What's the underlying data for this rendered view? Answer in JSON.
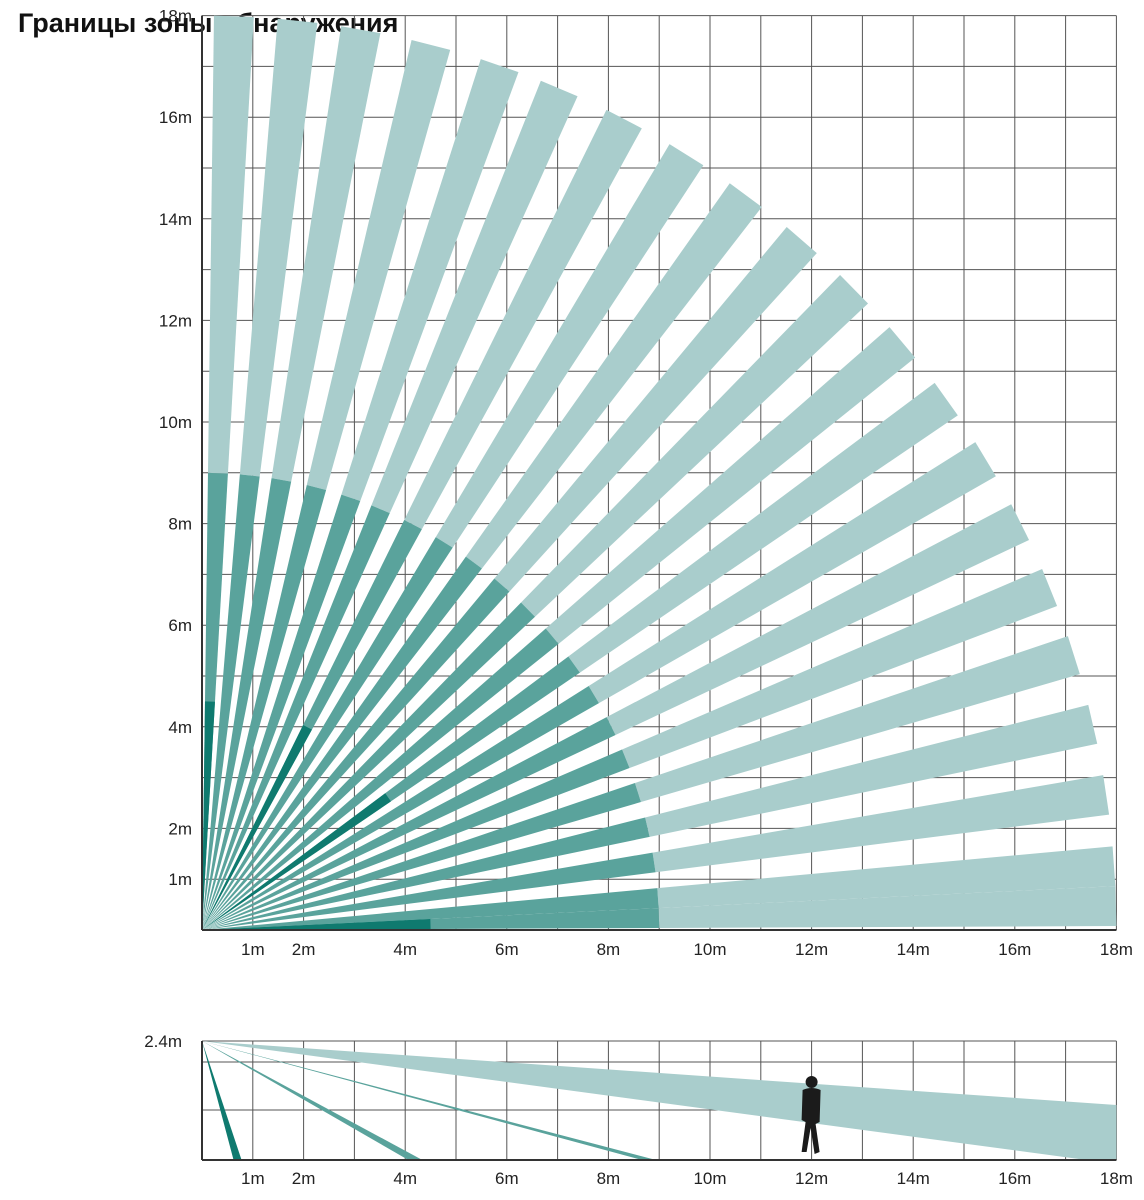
{
  "title": "Границы зоны обнаружения",
  "colors": {
    "near": "#0f7a6f",
    "mid": "#5aa39c",
    "far": "#a9cdcc",
    "grid": "#555555"
  },
  "top_view": {
    "x_ticks": [
      {
        "value": 1,
        "label": "1m"
      },
      {
        "value": 2,
        "label": "2m"
      },
      {
        "value": 4,
        "label": "4m"
      },
      {
        "value": 6,
        "label": "6m"
      },
      {
        "value": 8,
        "label": "8m"
      },
      {
        "value": 10,
        "label": "10m"
      },
      {
        "value": 12,
        "label": "12m"
      },
      {
        "value": 14,
        "label": "14m"
      },
      {
        "value": 16,
        "label": "16m"
      },
      {
        "value": 18,
        "label": "18m"
      }
    ],
    "y_ticks": [
      {
        "value": 1,
        "label": "1m"
      },
      {
        "value": 2,
        "label": "2m"
      },
      {
        "value": 4,
        "label": "4m"
      },
      {
        "value": 6,
        "label": "6m"
      },
      {
        "value": 8,
        "label": "8m"
      },
      {
        "value": 10,
        "label": "10m"
      },
      {
        "value": 12,
        "label": "12m"
      },
      {
        "value": 14,
        "label": "14m"
      },
      {
        "value": 16,
        "label": "16m"
      },
      {
        "value": 18,
        "label": "18m"
      }
    ],
    "beams": [
      {
        "angle_deg": 88,
        "near_m": 4.5,
        "mid_m": 9,
        "far_m": 18
      },
      {
        "angle_deg": 84,
        "near_m": 0,
        "mid_m": 9,
        "far_m": 18
      },
      {
        "angle_deg": 80,
        "near_m": 0,
        "mid_m": 9,
        "far_m": 18
      },
      {
        "angle_deg": 75.5,
        "near_m": 0,
        "mid_m": 9,
        "far_m": 18
      },
      {
        "angle_deg": 71,
        "near_m": 0,
        "mid_m": 9,
        "far_m": 18
      },
      {
        "angle_deg": 67,
        "near_m": 0,
        "mid_m": 9,
        "far_m": 18
      },
      {
        "angle_deg": 62.5,
        "near_m": 4.5,
        "mid_m": 9,
        "far_m": 18
      },
      {
        "angle_deg": 58,
        "near_m": 0,
        "mid_m": 9,
        "far_m": 18
      },
      {
        "angle_deg": 53.5,
        "near_m": 0,
        "mid_m": 9,
        "far_m": 18
      },
      {
        "angle_deg": 49,
        "near_m": 0,
        "mid_m": 9,
        "far_m": 18
      },
      {
        "angle_deg": 44.5,
        "near_m": 0,
        "mid_m": 9,
        "far_m": 18
      },
      {
        "angle_deg": 40,
        "near_m": 0,
        "mid_m": 9,
        "far_m": 18
      },
      {
        "angle_deg": 35.5,
        "near_m": 4.5,
        "mid_m": 9,
        "far_m": 18
      },
      {
        "angle_deg": 31,
        "near_m": 0,
        "mid_m": 9,
        "far_m": 18
      },
      {
        "angle_deg": 26.5,
        "near_m": 0,
        "mid_m": 9,
        "far_m": 18
      },
      {
        "angle_deg": 22,
        "near_m": 0,
        "mid_m": 9,
        "far_m": 18
      },
      {
        "angle_deg": 17.5,
        "near_m": 0,
        "mid_m": 9,
        "far_m": 18
      },
      {
        "angle_deg": 13,
        "near_m": 0,
        "mid_m": 9,
        "far_m": 18
      },
      {
        "angle_deg": 8.5,
        "near_m": 0,
        "mid_m": 9,
        "far_m": 18
      },
      {
        "angle_deg": 4,
        "near_m": 0,
        "mid_m": 9,
        "far_m": 18
      },
      {
        "angle_deg": 1.5,
        "near_m": 4.5,
        "mid_m": 9,
        "far_m": 18
      }
    ]
  },
  "side_view": {
    "height_label": "2.4m",
    "x_ticks": [
      {
        "value": 1,
        "label": "1m"
      },
      {
        "value": 2,
        "label": "2m"
      },
      {
        "value": 4,
        "label": "4m"
      },
      {
        "value": 6,
        "label": "6m"
      },
      {
        "value": 8,
        "label": "8m"
      },
      {
        "value": 10,
        "label": "10m"
      },
      {
        "value": 12,
        "label": "12m"
      },
      {
        "value": 14,
        "label": "14m"
      },
      {
        "value": 16,
        "label": "16m"
      },
      {
        "value": 18,
        "label": "18m"
      }
    ],
    "beams": [
      {
        "zone": "near",
        "reach_m": 0.7
      },
      {
        "zone": "mid",
        "reach_m": 4.2
      },
      {
        "zone": "mid",
        "reach_m": 8.8
      },
      {
        "zone": "far",
        "reach_m": 18
      }
    ],
    "person_position_m": 12,
    "person_icon": "walking-person-icon"
  }
}
